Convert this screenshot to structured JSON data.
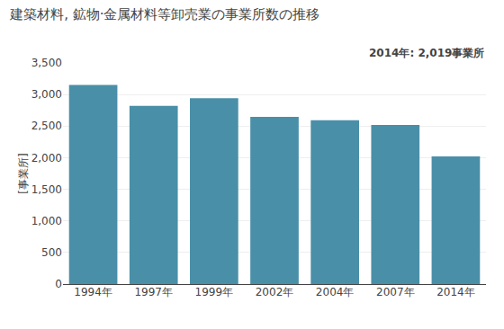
{
  "chart_data": {
    "type": "bar",
    "title": "建築材料, 鉱物·金属材料等卸売業の事業所数の推移",
    "ylabel": "[事業所]",
    "annotations": [
      "2014年: 2,019事業所"
    ],
    "categories": [
      "1994年",
      "1997年",
      "1999年",
      "2002年",
      "2004年",
      "2007年",
      "2014年"
    ],
    "values": [
      3153,
      2820,
      2940,
      2648,
      2593,
      2519,
      2019
    ],
    "color": "#4a8fa8",
    "ylim": [
      0,
      3500
    ],
    "yticks": [
      0,
      500,
      {
        "value": 1000,
        "label": "1,000"
      },
      {
        "value": 1500,
        "label": "1,500"
      },
      {
        "value": 2000,
        "label": "2,000"
      },
      {
        "value": 2500,
        "label": "2,500"
      },
      {
        "value": 3000,
        "label": "3,000"
      },
      {
        "value": 3500,
        "label": "3,500"
      }
    ],
    "grid": true
  }
}
